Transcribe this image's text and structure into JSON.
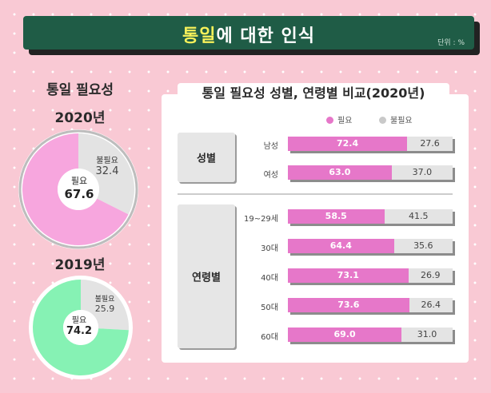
{
  "header": {
    "title_highlight": "통일",
    "title_rest": "에 대한 인식",
    "unit": "단위 : %"
  },
  "left": {
    "title": "통일 필요성",
    "donuts": [
      {
        "year": "2020년",
        "need_label": "필요",
        "need_value": "67.6",
        "no_label": "불필요",
        "no_value": "32.4",
        "need": 67.6,
        "no": 32.4,
        "color": "#f7a6de"
      },
      {
        "year": "2019년",
        "need_label": "필요",
        "need_value": "74.2",
        "no_label": "불필요",
        "no_value": "25.9",
        "need": 74.2,
        "no": 25.9,
        "color": "#86f2b4"
      }
    ]
  },
  "right": {
    "title": "통일 필요성 성별, 연령별 비교(2020년)",
    "legend": {
      "need": "필요",
      "no": "불필요",
      "need_color": "#e677c9",
      "no_color": "#c9c9c9"
    },
    "groups": {
      "gender": "성별",
      "age": "연령별"
    }
  },
  "chart_data": [
    {
      "type": "pie",
      "title": "2020년",
      "categories": [
        "필요",
        "불필요"
      ],
      "values": [
        67.6,
        32.4
      ]
    },
    {
      "type": "pie",
      "title": "2019년",
      "categories": [
        "필요",
        "불필요"
      ],
      "values": [
        74.2,
        25.9
      ]
    },
    {
      "type": "bar",
      "stacked": true,
      "orientation": "horizontal",
      "title": "통일 필요성 성별, 연령별 비교(2020년)",
      "categories": [
        "남성",
        "여성",
        "19~29세",
        "30대",
        "40대",
        "50대",
        "60대"
      ],
      "series": [
        {
          "name": "필요",
          "values": [
            72.4,
            63.0,
            58.5,
            64.4,
            73.1,
            73.6,
            69.0
          ],
          "labels": [
            "72.4",
            "63.0",
            "58.5",
            "64.4",
            "73.1",
            "73.6",
            "69.0"
          ]
        },
        {
          "name": "불필요",
          "values": [
            27.6,
            37.0,
            41.5,
            35.6,
            26.9,
            26.4,
            31.0
          ],
          "labels": [
            "27.6",
            "37.0",
            "41.5",
            "35.6",
            "26.9",
            "26.4",
            "31.0"
          ]
        }
      ],
      "xlim": [
        0,
        100
      ]
    }
  ]
}
